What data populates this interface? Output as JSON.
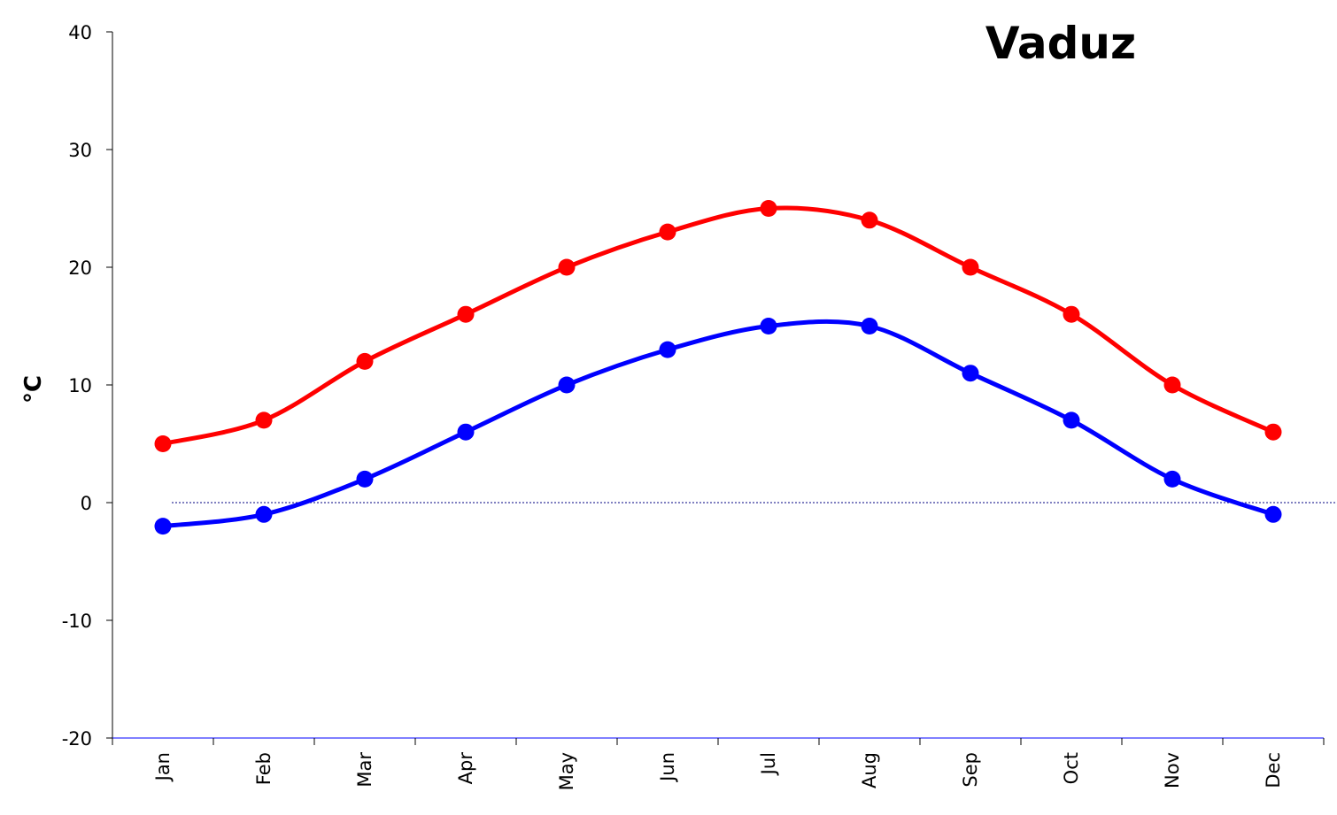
{
  "chart_data": {
    "type": "line",
    "title": "Vaduz",
    "ylabel": "°C",
    "xlabel": "",
    "categories": [
      "Jan",
      "Feb",
      "Mar",
      "Apr",
      "May",
      "Jun",
      "Jul",
      "Aug",
      "Sep",
      "Oct",
      "Nov",
      "Dec"
    ],
    "ylim": [
      -20,
      40
    ],
    "yticks": [
      "40",
      "30",
      "20",
      "10",
      "0",
      "-10",
      "-20"
    ],
    "grid": false,
    "zero_line": true,
    "series": [
      {
        "color": "#ff0000",
        "values": [
          5,
          7,
          12,
          16,
          20,
          23,
          25,
          24,
          20,
          16,
          10,
          6
        ]
      },
      {
        "color": "#0000ff",
        "values": [
          -2,
          -1,
          2,
          6,
          10,
          13,
          15,
          15,
          11,
          7,
          2,
          -1
        ]
      }
    ]
  }
}
